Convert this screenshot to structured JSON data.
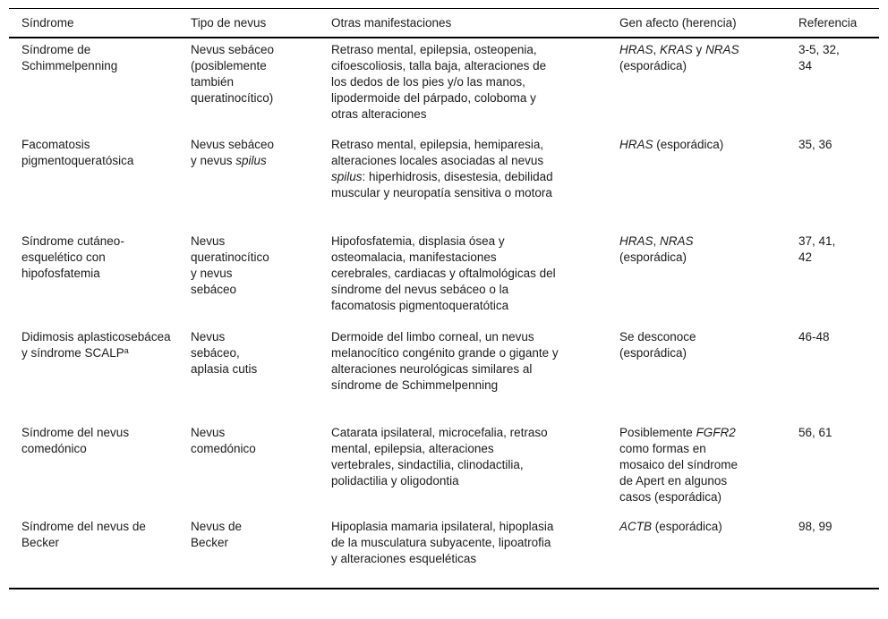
{
  "table": {
    "headers": {
      "sindrome": "Síndrome",
      "tipo": "Tipo de nevus",
      "manifestaciones": "Otras manifestaciones",
      "gen": "Gen afecto (herencia)",
      "referencia": "Referencia"
    },
    "text_color": "#1b1b1b",
    "rule_color": "#000000",
    "rows": [
      {
        "sindrome": [
          {
            "t": "Síndrome de Schimmelpenning"
          }
        ],
        "tipo": [
          {
            "t": "Nevus sebáceo (posiblemente también queratinocítico)"
          }
        ],
        "manifestaciones": [
          {
            "t": "Retraso mental, epilepsia, osteopenia, cifoescoliosis, talla baja, alteraciones de los dedos de los pies y/o las manos, lipodermoide del párpado, coloboma y otras alteraciones"
          }
        ],
        "gen": [
          {
            "t": "HRAS",
            "i": true
          },
          {
            "t": ", "
          },
          {
            "t": "KRAS",
            "i": true
          },
          {
            "t": " y "
          },
          {
            "t": "NRAS",
            "i": true
          },
          {
            "t": " (esporádica)"
          }
        ],
        "referencia": [
          {
            "t": "3-5, 32, 34"
          }
        ]
      },
      {
        "sindrome": [
          {
            "t": "Facomatosis pigmentoqueratósica"
          }
        ],
        "tipo": [
          {
            "t": "Nevus sebáceo y nevus "
          },
          {
            "t": "spilus",
            "i": true
          }
        ],
        "manifestaciones": [
          {
            "t": "Retraso mental, epilepsia, hemiparesia, alteraciones locales asociadas al nevus "
          },
          {
            "t": "spilus",
            "i": true
          },
          {
            "t": ": hiperhidrosis, disestesia, debilidad muscular y neuropatía sensitiva o motora"
          }
        ],
        "gen": [
          {
            "t": "HRAS",
            "i": true
          },
          {
            "t": " (esporádica)"
          }
        ],
        "referencia": [
          {
            "t": "35, 36"
          }
        ]
      },
      {
        "sindrome": [
          {
            "t": "Síndrome cutáneo-esquelético con hipofosfatemia"
          }
        ],
        "tipo": [
          {
            "t": "Nevus queratinocítico y nevus sebáceo"
          }
        ],
        "manifestaciones": [
          {
            "t": "Hipofosfatemia, displasia ósea y osteomalacia, manifestaciones cerebrales, cardiacas y oftalmológicas del síndrome del nevus sebáceo o la facomatosis pigmentoqueratótica"
          }
        ],
        "gen": [
          {
            "t": "HRAS",
            "i": true
          },
          {
            "t": ", "
          },
          {
            "t": "NRAS",
            "i": true
          },
          {
            "t": " (esporádica)"
          }
        ],
        "referencia": [
          {
            "t": "37, 41, 42"
          }
        ]
      },
      {
        "sindrome": [
          {
            "t": "Didimosis aplasticosebácea y síndrome SCALP"
          },
          {
            "t": "a",
            "sup": true
          }
        ],
        "tipo": [
          {
            "t": "Nevus sebáceo, aplasia cutis"
          }
        ],
        "manifestaciones": [
          {
            "t": "Dermoide del limbo corneal, un nevus melanocítico congénito grande o gigante y alteraciones neurológicas similares al síndrome de Schimmelpenning"
          }
        ],
        "gen": [
          {
            "t": "Se desconoce (esporádica)"
          }
        ],
        "referencia": [
          {
            "t": "46-48"
          }
        ]
      },
      {
        "sindrome": [
          {
            "t": "Síndrome del nevus comedónico"
          }
        ],
        "tipo": [
          {
            "t": "Nevus comedónico"
          }
        ],
        "manifestaciones": [
          {
            "t": "Catarata ipsilateral, microcefalia, retraso mental, epilepsia, alteraciones vertebrales, sindactilia, clinodactilia, polidactilia y oligodontia"
          }
        ],
        "gen": [
          {
            "t": "Posiblemente "
          },
          {
            "t": "FGFR2",
            "i": true
          },
          {
            "t": " como formas en mosaico del síndrome de Apert en algunos casos (esporádica)"
          }
        ],
        "referencia": [
          {
            "t": "56, 61"
          }
        ]
      },
      {
        "sindrome": [
          {
            "t": "Síndrome del nevus de Becker"
          }
        ],
        "tipo": [
          {
            "t": "Nevus de Becker"
          }
        ],
        "manifestaciones": [
          {
            "t": "Hipoplasia mamaria ipsilateral, hipoplasia de la musculatura subyacente, lipoatrofia y alteraciones esqueléticas"
          }
        ],
        "gen": [
          {
            "t": "ACTB",
            "i": true
          },
          {
            "t": " (esporádica)"
          }
        ],
        "referencia": [
          {
            "t": "98, 99"
          }
        ]
      }
    ]
  }
}
